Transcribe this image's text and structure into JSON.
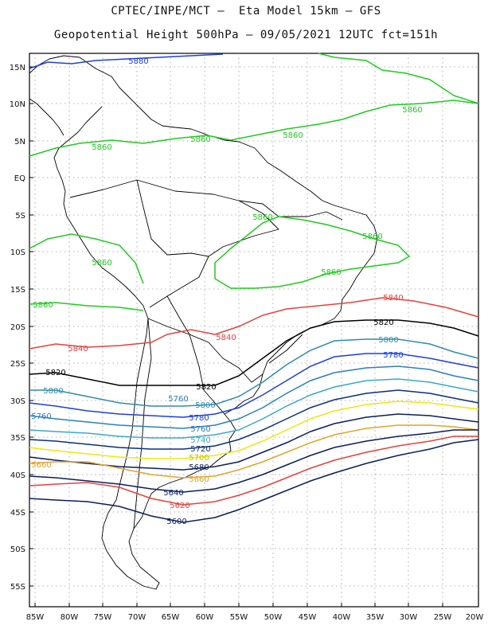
{
  "title_line1": "CPTEC/INPE/MCT –  Eta Model 15km – GFS",
  "title_line2": "Geopotential Height 500hPa – 09/05/2021 12UTC fct=151h",
  "lat_labels": [
    "15N",
    "10N",
    "5N",
    "EQ",
    "5S",
    "10S",
    "15S",
    "20S",
    "25S",
    "30S",
    "35S",
    "40S",
    "45S",
    "50S",
    "55S"
  ],
  "lon_labels": [
    "85W",
    "80W",
    "75W",
    "70W",
    "65W",
    "60W",
    "55W",
    "50W",
    "45W",
    "40W",
    "35W",
    "30W",
    "25W",
    "20W"
  ],
  "colors": {
    "c5880": "#1f3fe0",
    "c5860": "#1ecb1e",
    "c5840": "#e8403c",
    "c5820": "#000000",
    "c5800": "#2e8bb0",
    "c5780": "#1c3ee0",
    "c5760": "#2a7fc0",
    "c5740": "#38a9c8",
    "c5720": "#0b2f7a",
    "c5700": "#f2e60a",
    "c5680": "#0a1e5e",
    "c5660": "#e6a22a",
    "c5640": "#0a1e5e",
    "c5620": "#e8403c",
    "c5600": "#0a1e5e"
  },
  "contour_labels": [
    {
      "text": "5880",
      "color": "#1f3fe0"
    },
    {
      "text": "5860",
      "color": "#1ecb1e"
    },
    {
      "text": "5860",
      "color": "#1ecb1e"
    },
    {
      "text": "5860",
      "color": "#1ecb1e"
    },
    {
      "text": "5860",
      "color": "#1ecb1e"
    },
    {
      "text": "5860",
      "color": "#1ecb1e"
    },
    {
      "text": "5860",
      "color": "#1ecb1e"
    },
    {
      "text": "5860",
      "color": "#1ecb1e"
    },
    {
      "text": "5860",
      "color": "#1ecb1e"
    },
    {
      "text": "5860",
      "color": "#1ecb1e"
    },
    {
      "text": "5840",
      "color": "#e8403c"
    },
    {
      "text": "5840",
      "color": "#e8403c"
    },
    {
      "text": "5840",
      "color": "#e8403c"
    },
    {
      "text": "5820",
      "color": "#000000"
    },
    {
      "text": "5820",
      "color": "#000000"
    },
    {
      "text": "5820",
      "color": "#000000"
    },
    {
      "text": "5800",
      "color": "#2e8bb0"
    },
    {
      "text": "5800",
      "color": "#2e8bb0"
    },
    {
      "text": "5800",
      "color": "#2e8bb0"
    },
    {
      "text": "5780",
      "color": "#1c3ee0"
    },
    {
      "text": "5780",
      "color": "#1c3ee0"
    },
    {
      "text": "5760",
      "color": "#2a7fc0"
    },
    {
      "text": "5760",
      "color": "#2a7fc0"
    },
    {
      "text": "5760",
      "color": "#2a7fc0"
    },
    {
      "text": "5740",
      "color": "#38a9c8"
    },
    {
      "text": "5720",
      "color": "#0b2f7a"
    },
    {
      "text": "5700",
      "color": "#c9bd00"
    },
    {
      "text": "5680",
      "color": "#0a1e5e"
    },
    {
      "text": "5660",
      "color": "#e6a22a"
    },
    {
      "text": "5660",
      "color": "#e6a22a"
    },
    {
      "text": "5640",
      "color": "#0a1e5e"
    },
    {
      "text": "5620",
      "color": "#e8403c"
    },
    {
      "text": "5600",
      "color": "#0a1e5e"
    }
  ]
}
